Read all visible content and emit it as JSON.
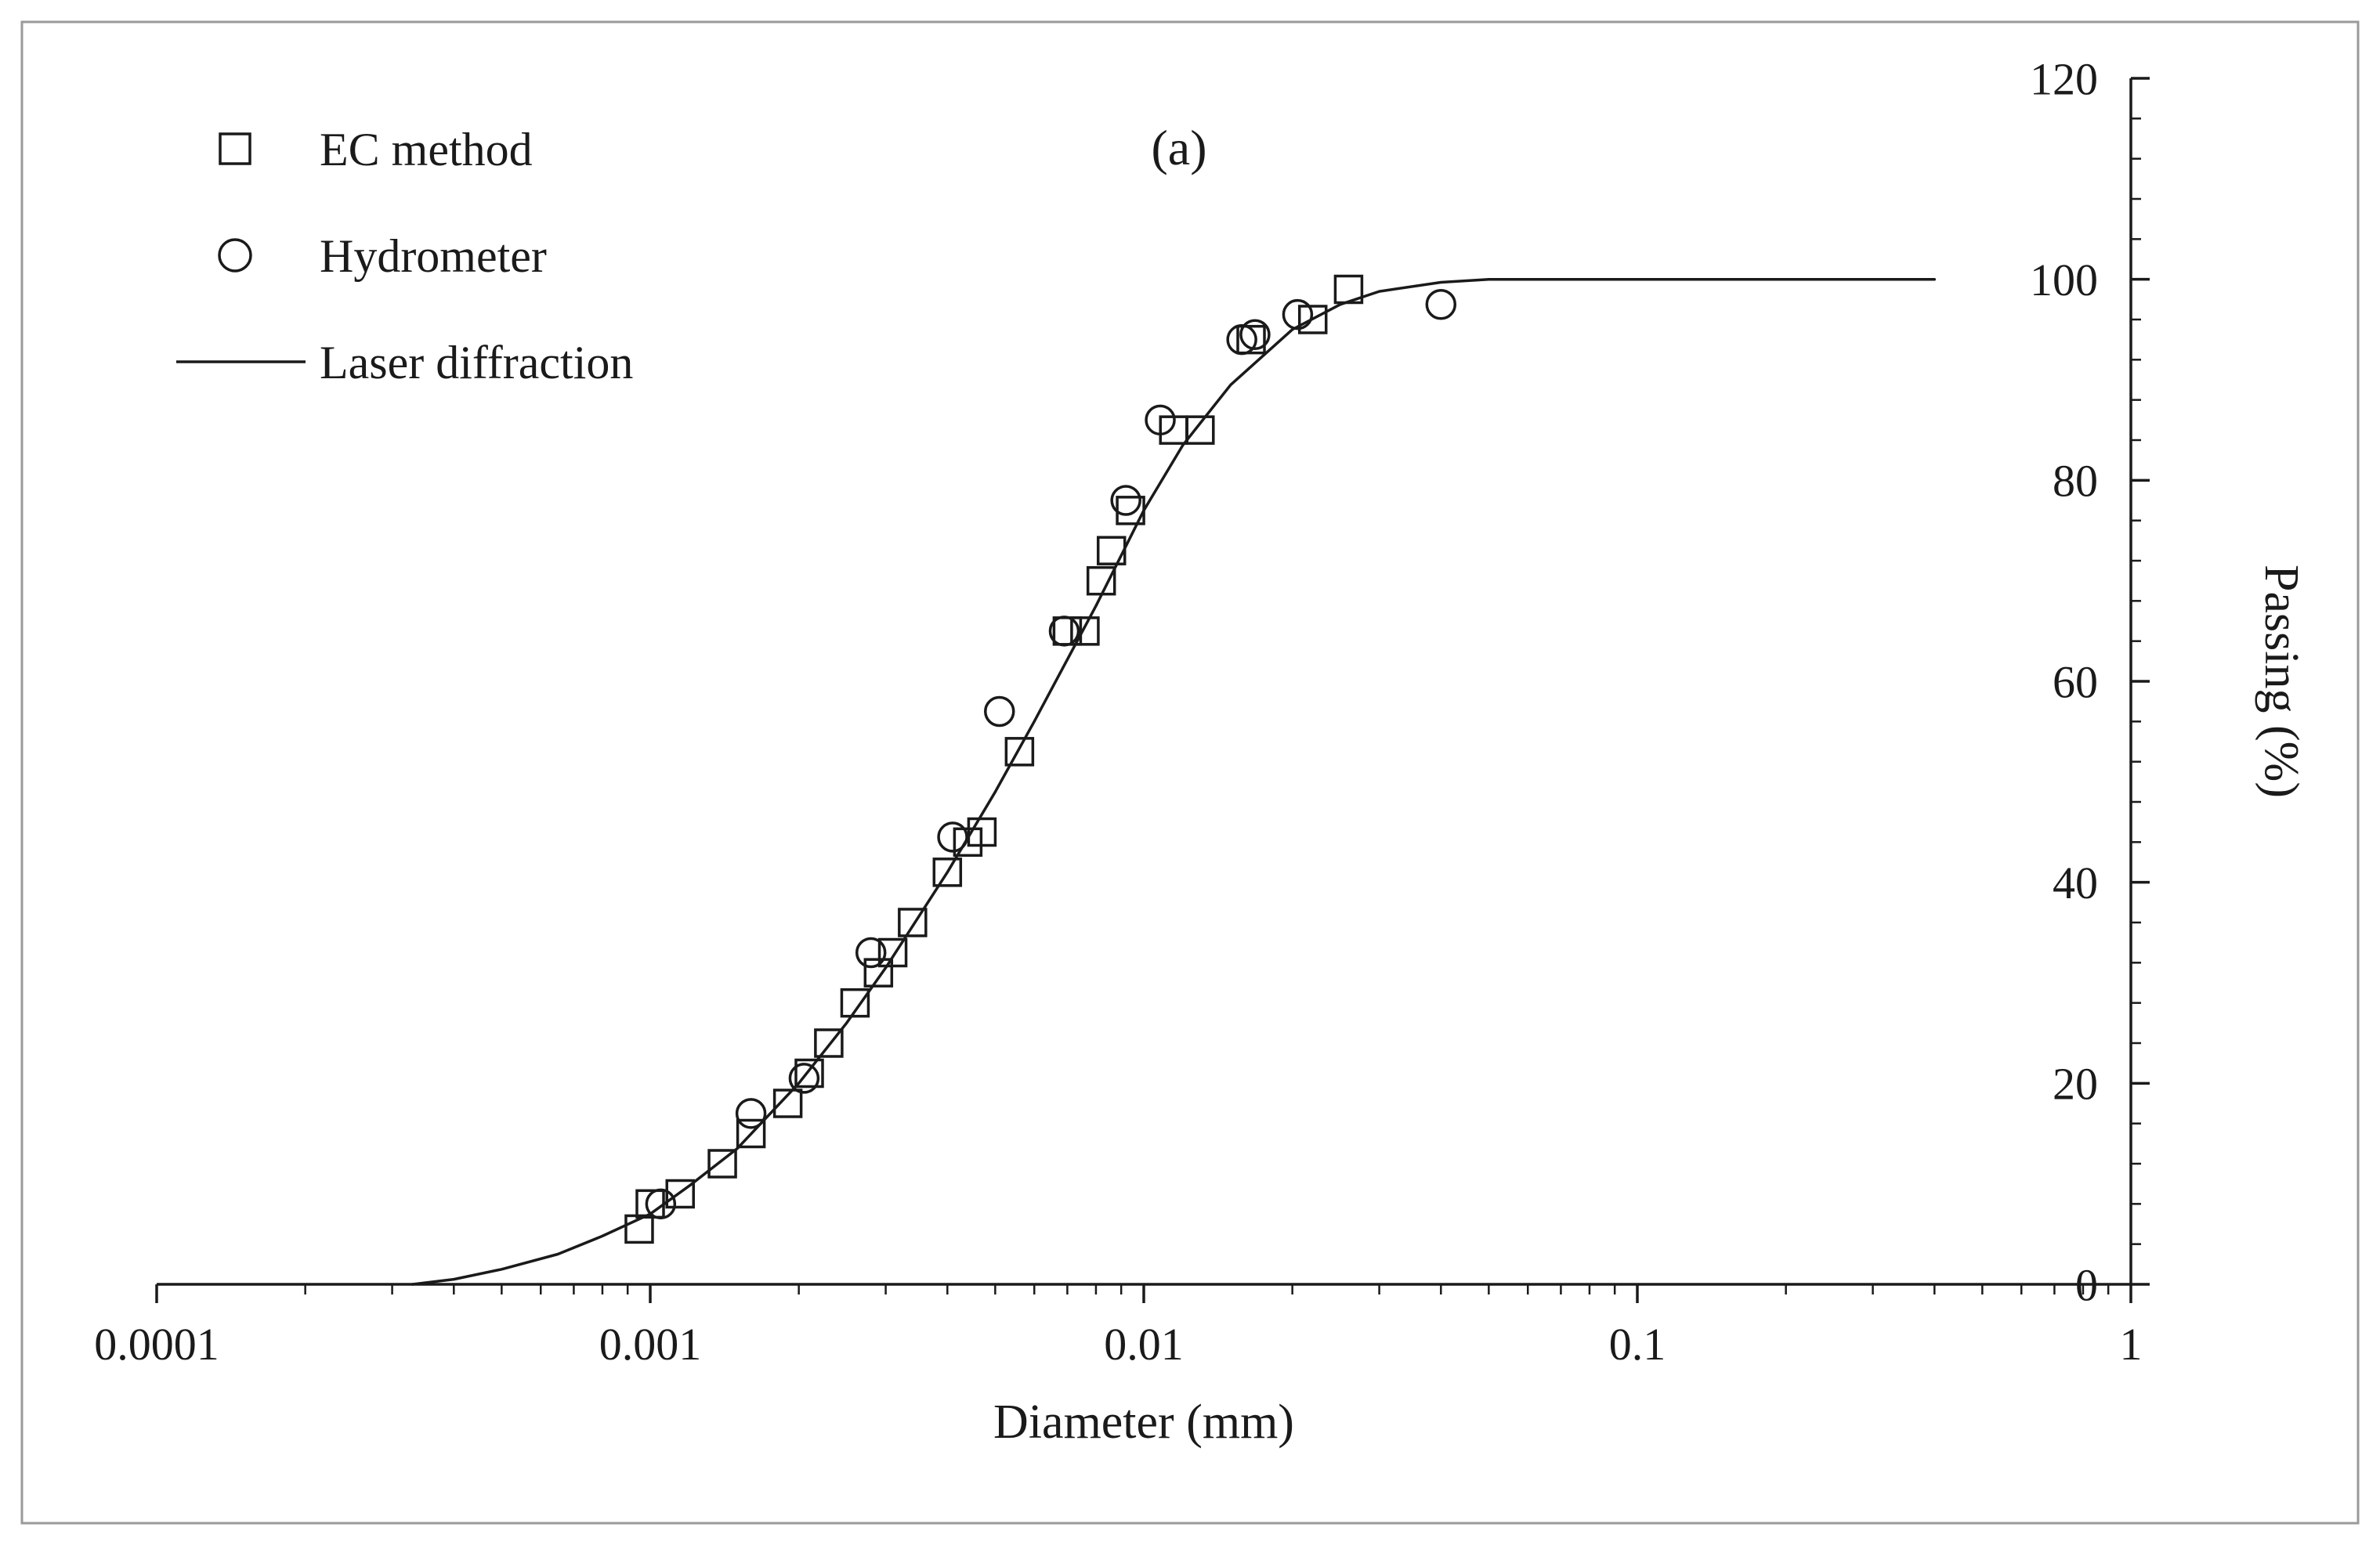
{
  "figure": {
    "annotation": "(a)",
    "background": "#ffffff",
    "border_color": "#9a9a9a",
    "ink_color": "#1a1a1a"
  },
  "chart_data": {
    "type": "line",
    "title": "(a)",
    "xlabel": "Diameter (mm)",
    "ylabel": "Passing (%)",
    "x_scale": "log",
    "xlim": [
      0.0001,
      1
    ],
    "ylim": [
      0,
      120
    ],
    "x_ticks": [
      0.0001,
      0.001,
      0.01,
      0.1,
      1
    ],
    "x_tick_labels": [
      "0.0001",
      "0.001",
      "0.01",
      "0.1",
      "1"
    ],
    "y_ticks": [
      0,
      20,
      40,
      60,
      80,
      100,
      120
    ],
    "y_tick_labels": [
      "0",
      "20",
      "40",
      "60",
      "80",
      "100",
      "120"
    ],
    "y_minor_step": 4,
    "grid": "off",
    "legend_position": "top-left",
    "legend": [
      {
        "label": "EC method",
        "marker": "square"
      },
      {
        "label": "Hydrometer",
        "marker": "circle"
      },
      {
        "label": "Laser diffraction",
        "marker": "line"
      }
    ],
    "series": [
      {
        "name": "EC method",
        "type": "scatter",
        "marker": "square",
        "points": [
          [
            0.00095,
            5.5
          ],
          [
            0.001,
            8
          ],
          [
            0.00115,
            9
          ],
          [
            0.0014,
            12
          ],
          [
            0.0016,
            15
          ],
          [
            0.0019,
            18
          ],
          [
            0.0021,
            21
          ],
          [
            0.0023,
            24
          ],
          [
            0.0026,
            28
          ],
          [
            0.0029,
            31
          ],
          [
            0.0031,
            33
          ],
          [
            0.0034,
            36
          ],
          [
            0.004,
            41
          ],
          [
            0.0044,
            44
          ],
          [
            0.0047,
            45
          ],
          [
            0.0056,
            53
          ],
          [
            0.007,
            65
          ],
          [
            0.0076,
            65
          ],
          [
            0.0082,
            70
          ],
          [
            0.0086,
            73
          ],
          [
            0.0094,
            77
          ],
          [
            0.0115,
            85
          ],
          [
            0.013,
            85
          ],
          [
            0.0165,
            94
          ],
          [
            0.022,
            96
          ],
          [
            0.026,
            99
          ]
        ]
      },
      {
        "name": "Hydrometer",
        "type": "scatter",
        "marker": "circle",
        "points": [
          [
            0.00105,
            8
          ],
          [
            0.0016,
            17
          ],
          [
            0.00205,
            20.5
          ],
          [
            0.0028,
            33
          ],
          [
            0.0041,
            44.5
          ],
          [
            0.0051,
            57
          ],
          [
            0.0069,
            65
          ],
          [
            0.0092,
            78
          ],
          [
            0.0108,
            86
          ],
          [
            0.0158,
            94
          ],
          [
            0.0168,
            94.5
          ],
          [
            0.0205,
            96.5
          ],
          [
            0.04,
            97.5
          ]
        ]
      },
      {
        "name": "Laser diffraction",
        "type": "line",
        "points": [
          [
            0.00033,
            0
          ],
          [
            0.0004,
            0.5
          ],
          [
            0.0005,
            1.5
          ],
          [
            0.00065,
            3
          ],
          [
            0.0008,
            4.8
          ],
          [
            0.001,
            7
          ],
          [
            0.0012,
            9.8
          ],
          [
            0.0015,
            13.5
          ],
          [
            0.002,
            20
          ],
          [
            0.0025,
            26
          ],
          [
            0.003,
            31.5
          ],
          [
            0.004,
            41
          ],
          [
            0.005,
            49
          ],
          [
            0.006,
            56
          ],
          [
            0.008,
            67.5
          ],
          [
            0.01,
            77
          ],
          [
            0.012,
            83.5
          ],
          [
            0.015,
            89.5
          ],
          [
            0.02,
            95
          ],
          [
            0.025,
            97.5
          ],
          [
            0.03,
            98.8
          ],
          [
            0.04,
            99.7
          ],
          [
            0.05,
            100
          ],
          [
            0.07,
            100
          ],
          [
            0.1,
            100
          ],
          [
            0.2,
            100
          ],
          [
            0.4,
            100
          ]
        ]
      }
    ]
  }
}
